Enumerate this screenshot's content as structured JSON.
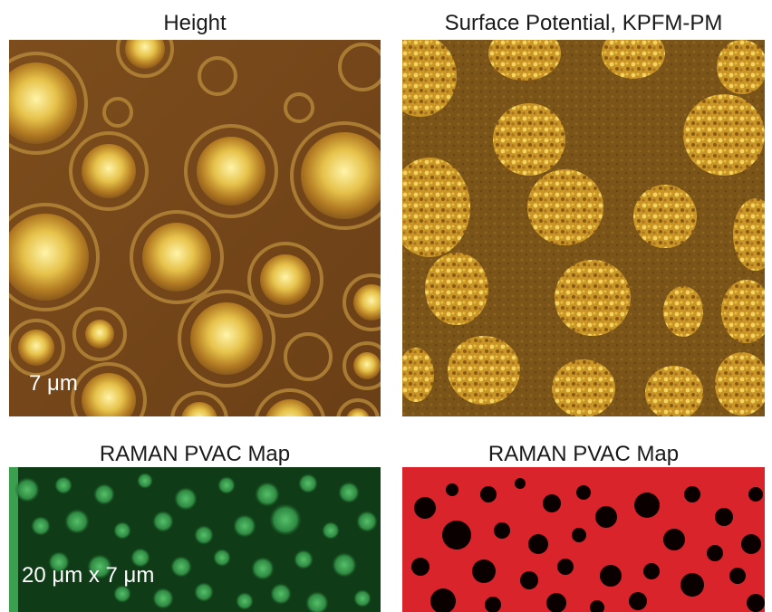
{
  "panels": [
    {
      "title": "Height",
      "scale_bar": "7 μm"
    },
    {
      "title": "Surface Potential, KPFM-PM"
    },
    {
      "title": "RAMAN PVAC Map",
      "scale_bar": "20 μm x 7 μm"
    },
    {
      "title": "RAMAN PVAC Map"
    }
  ],
  "colors": {
    "height_background": "#7a4a1c",
    "height_domain": "#f2d860",
    "kpfm_background": "#7a5418",
    "kpfm_domain": "#d6a52a",
    "raman_green_background": "#0e3a14",
    "raman_green_dot": "#3fae58",
    "raman_red_background": "#d9242c",
    "raman_red_dot": "#0a0000"
  }
}
